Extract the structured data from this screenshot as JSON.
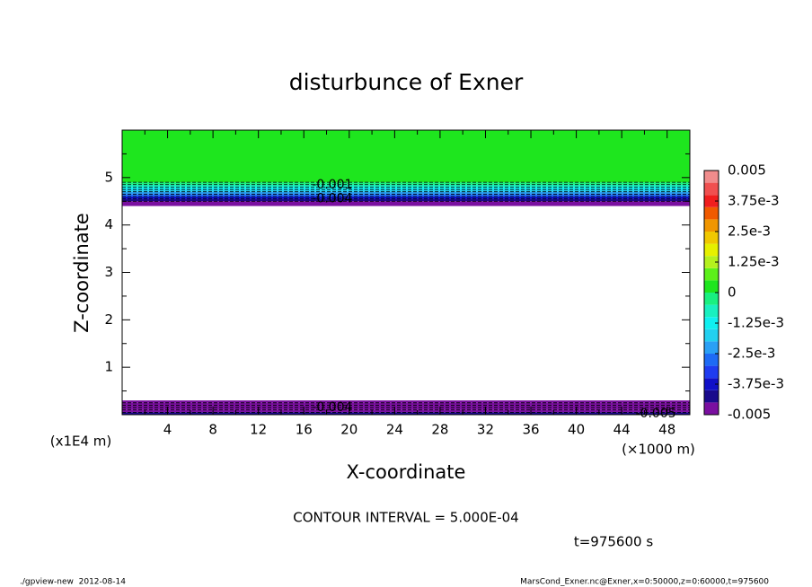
{
  "chart_data": {
    "type": "contour",
    "title": "disturbunce of Exner",
    "x_label": "X-coordinate",
    "y_label": "Z-coordinate",
    "x_unit": "(×1000 m)",
    "y_unit": "(x1E4 m)",
    "xlim": [
      0,
      50
    ],
    "ylim": [
      0,
      6
    ],
    "xticks": [
      4,
      8,
      12,
      16,
      20,
      24,
      28,
      32,
      36,
      40,
      44,
      48
    ],
    "yticks": [
      1,
      2,
      3,
      4,
      5
    ],
    "x_minor_ticks": [
      2,
      6,
      10,
      14,
      18,
      22,
      26,
      30,
      34,
      38,
      42,
      46,
      50
    ],
    "y_minor_ticks": [
      0.5,
      1.5,
      2.5,
      3.5,
      4.5,
      5.5
    ],
    "z_edges": [
      0,
      0.05,
      0.1,
      0.15,
      0.2,
      0.25,
      0.3,
      4.4,
      4.5,
      4.55,
      4.6,
      4.65,
      4.7,
      4.75,
      4.8,
      4.85,
      4.9,
      6
    ],
    "values": [
      -0.0043,
      -0.0045,
      -0.0046,
      -0.0047,
      -0.0048,
      -0.0049,
      null,
      -0.0048,
      -0.0043,
      -0.0035,
      -0.0028,
      -0.002,
      -0.0015,
      -0.001,
      -0.0006,
      -0.0002,
      0.0002
    ],
    "contour_labels": [
      {
        "value": -0.001,
        "x": 18.5,
        "z": 4.85
      },
      {
        "value": -0.004,
        "x": 18.5,
        "z": 4.55
      },
      {
        "value": -0.004,
        "x": 18.5,
        "z": 0.15
      },
      {
        "value": -0.005,
        "x": 47,
        "z": 0.02
      }
    ],
    "colorbar": {
      "levels": [
        -0.005,
        -0.0045,
        -0.004,
        -0.0035,
        -0.003,
        -0.0025,
        -0.002,
        -0.0015,
        -0.001,
        -0.0005,
        0,
        0.0005,
        0.001,
        0.0015,
        0.002,
        0.0025,
        0.003,
        0.0035,
        0.004,
        0.0045,
        0.005
      ],
      "colors": [
        "#7a0fa0",
        "#1a0a8c",
        "#1010c8",
        "#1f3cf0",
        "#1e6bf5",
        "#2aa0f5",
        "#22d0f0",
        "#10f0f0",
        "#19f0c0",
        "#19f080",
        "#1ee61e",
        "#5cf01a",
        "#b4f01e",
        "#e6f000",
        "#f0c800",
        "#f09600",
        "#f05a00",
        "#f01e1e",
        "#f05050",
        "#f08c8c"
      ],
      "ticks": [
        -0.005,
        {
          "value": -0.00375,
          "label": "-3.75e-3"
        },
        {
          "value": -0.0025,
          "label": "-2.5e-3"
        },
        {
          "value": -0.00125,
          "label": "-1.25e-3"
        },
        0,
        {
          "value": 0.00125,
          "label": "1.25e-3"
        },
        {
          "value": 0.0025,
          "label": "2.5e-3"
        },
        {
          "value": 0.00375,
          "label": "3.75e-3"
        },
        0.005
      ]
    },
    "contour_interval": "CONTOUR INTERVAL = 5.000E-04",
    "time_label": "t=975600 s",
    "footer_left": "./gpview-new  2012-08-14",
    "footer_right": "MarsCond_Exner.nc@Exner,x=0:50000,z=0:60000,t=975600"
  }
}
